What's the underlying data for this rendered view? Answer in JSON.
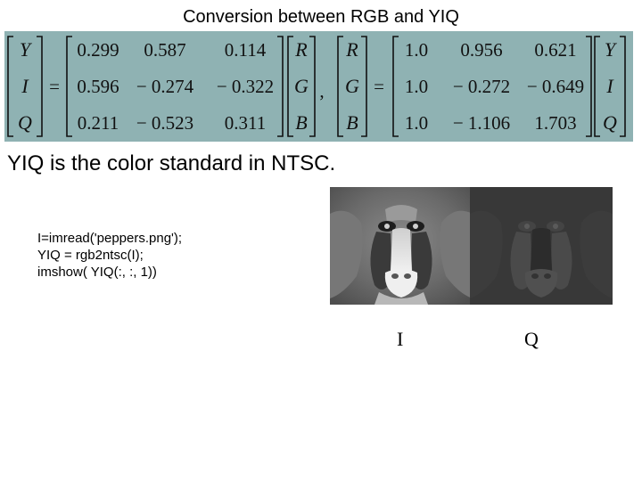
{
  "title": "Conversion between RGB and YIQ",
  "equation": {
    "lhs_vector": [
      "Y",
      "I",
      "Q"
    ],
    "equals": "=",
    "forward_matrix": [
      [
        "0.299",
        "0.587",
        "0.114"
      ],
      [
        "0.596",
        "− 0.274",
        "− 0.322"
      ],
      [
        "0.211",
        "− 0.523",
        "0.311"
      ]
    ],
    "rgb_vector": [
      "R",
      "G",
      "B"
    ],
    "comma": ",",
    "inverse_lhs_vector": [
      "R",
      "G",
      "B"
    ],
    "inverse_matrix": [
      [
        "1.0",
        "0.956",
        "0.621"
      ],
      [
        "1.0",
        "− 0.272",
        "− 0.649"
      ],
      [
        "1.0",
        "− 1.106",
        "1.703"
      ]
    ],
    "yiq_vector": [
      "Y",
      "I",
      "Q"
    ]
  },
  "subtitle": "YIQ is the color standard in NTSC.",
  "code": [
    "I=imread('peppers.png');",
    "YIQ = rgb2ntsc(I);",
    "imshow( YIQ(:, :, 1))"
  ],
  "images": [
    {
      "caption": "I",
      "icon": "mandrill-I-channel-image"
    },
    {
      "caption": "Q",
      "icon": "mandrill-Q-channel-image"
    }
  ]
}
